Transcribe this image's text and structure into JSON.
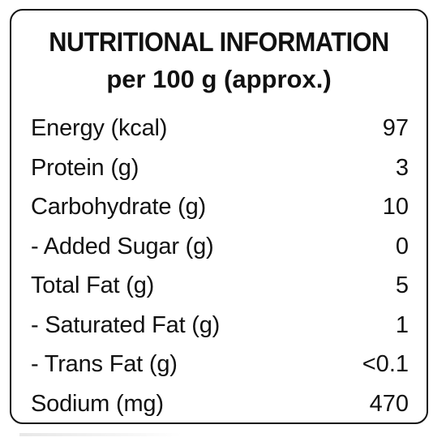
{
  "label": {
    "title": "NUTRITIONAL INFORMATION",
    "subtitle": "per 100 g (approx.)",
    "rows": [
      {
        "name": "Energy (kcal)",
        "value": "97"
      },
      {
        "name": "Protein (g)",
        "value": "3"
      },
      {
        "name": "Carbohydrate (g)",
        "value": "10"
      },
      {
        "name": "- Added Sugar (g)",
        "value": "0"
      },
      {
        "name": "Total Fat (g)",
        "value": "5"
      },
      {
        "name": "- Saturated Fat (g)",
        "value": "1"
      },
      {
        "name": "- Trans Fat (g)",
        "value": "<0.1"
      },
      {
        "name": "Sodium (mg)",
        "value": "470"
      }
    ]
  },
  "colors": {
    "ink": "#111111",
    "background": "#ffffff"
  }
}
